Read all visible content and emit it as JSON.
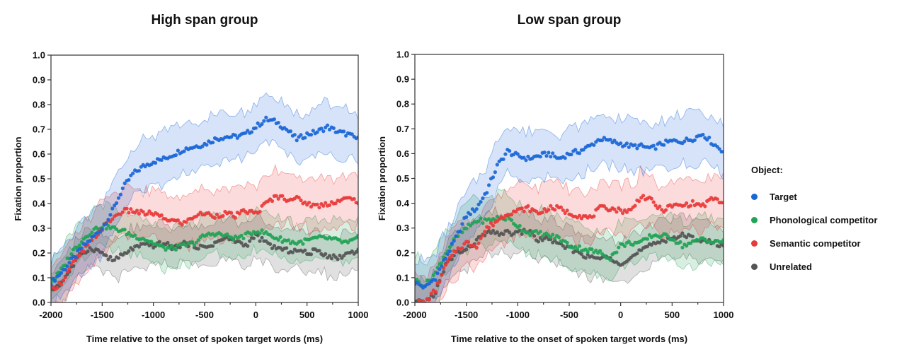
{
  "legend": {
    "title": "Object:",
    "items": [
      {
        "label": "Target",
        "color": "#1a66d6"
      },
      {
        "label": "Phonological competitor",
        "color": "#22a356"
      },
      {
        "label": "Semantic competitor",
        "color": "#e83a3a"
      },
      {
        "label": "Unrelated",
        "color": "#555555"
      }
    ]
  },
  "chart_data": [
    {
      "type": "scatter",
      "title": "High span group",
      "xlabel": "Time relative to the onset of spoken target words (ms)",
      "ylabel": "Fixation proportion",
      "xlim": [
        -2000,
        1000
      ],
      "ylim": [
        0.0,
        1.0
      ],
      "xticks": [
        "-2000",
        "-1500",
        "-1000",
        "-500",
        "0",
        "500",
        "1000"
      ],
      "yticks": [
        "0.0",
        "0.1",
        "0.2",
        "0.3",
        "0.4",
        "0.5",
        "0.6",
        "0.7",
        "0.8",
        "0.9",
        "1.0"
      ],
      "x": [
        -2000,
        -1900,
        -1800,
        -1700,
        -1600,
        -1500,
        -1400,
        -1300,
        -1200,
        -1100,
        -1000,
        -900,
        -800,
        -700,
        -600,
        -500,
        -400,
        -300,
        -200,
        -100,
        0,
        100,
        200,
        300,
        400,
        500,
        600,
        700,
        800,
        900,
        1000
      ],
      "series": [
        {
          "name": "Target",
          "color": "#1a66d6",
          "band": 0.1,
          "values": [
            0.08,
            0.12,
            0.17,
            0.22,
            0.26,
            0.3,
            0.37,
            0.46,
            0.52,
            0.55,
            0.57,
            0.58,
            0.6,
            0.62,
            0.63,
            0.64,
            0.66,
            0.67,
            0.67,
            0.68,
            0.71,
            0.74,
            0.73,
            0.7,
            0.66,
            0.68,
            0.69,
            0.71,
            0.69,
            0.68,
            0.66
          ]
        },
        {
          "name": "Phonological competitor",
          "color": "#22a356",
          "band": 0.08,
          "values": [
            0.08,
            0.13,
            0.2,
            0.25,
            0.29,
            0.31,
            0.3,
            0.29,
            0.27,
            0.26,
            0.24,
            0.22,
            0.22,
            0.23,
            0.24,
            0.27,
            0.28,
            0.27,
            0.26,
            0.27,
            0.29,
            0.28,
            0.26,
            0.25,
            0.24,
            0.25,
            0.26,
            0.26,
            0.25,
            0.24,
            0.26
          ]
        },
        {
          "name": "Semantic competitor",
          "color": "#e83a3a",
          "band": 0.1,
          "values": [
            0.05,
            0.08,
            0.15,
            0.2,
            0.25,
            0.3,
            0.34,
            0.37,
            0.37,
            0.36,
            0.36,
            0.34,
            0.33,
            0.32,
            0.35,
            0.36,
            0.35,
            0.36,
            0.35,
            0.37,
            0.36,
            0.4,
            0.43,
            0.42,
            0.42,
            0.4,
            0.39,
            0.4,
            0.41,
            0.42,
            0.41
          ]
        },
        {
          "name": "Unrelated",
          "color": "#555555",
          "band": 0.08,
          "values": [
            0.05,
            0.08,
            0.14,
            0.2,
            0.22,
            0.2,
            0.17,
            0.19,
            0.22,
            0.23,
            0.23,
            0.24,
            0.22,
            0.24,
            0.23,
            0.22,
            0.24,
            0.26,
            0.25,
            0.23,
            0.27,
            0.24,
            0.22,
            0.21,
            0.21,
            0.2,
            0.21,
            0.19,
            0.18,
            0.2,
            0.21
          ]
        }
      ]
    },
    {
      "type": "scatter",
      "title": "Low span group",
      "xlabel": "Time relative to the onset of spoken target words (ms)",
      "ylabel": "Fixation proportion",
      "xlim": [
        -2000,
        1000
      ],
      "ylim": [
        0.0,
        1.0
      ],
      "xticks": [
        "-2000",
        "-1500",
        "-1000",
        "-500",
        "0",
        "500",
        "1000"
      ],
      "yticks": [
        "0.0",
        "0.1",
        "0.2",
        "0.3",
        "0.4",
        "0.5",
        "0.6",
        "0.7",
        "0.8",
        "0.9",
        "1.0"
      ],
      "x": [
        -2000,
        -1900,
        -1800,
        -1700,
        -1600,
        -1500,
        -1400,
        -1300,
        -1200,
        -1100,
        -1000,
        -900,
        -800,
        -700,
        -600,
        -500,
        -400,
        -300,
        -200,
        -100,
        0,
        100,
        200,
        300,
        400,
        500,
        600,
        700,
        800,
        900,
        1000
      ],
      "series": [
        {
          "name": "Target",
          "color": "#1a66d6",
          "band": 0.1,
          "values": [
            0.08,
            0.06,
            0.1,
            0.18,
            0.26,
            0.35,
            0.38,
            0.45,
            0.55,
            0.61,
            0.59,
            0.58,
            0.59,
            0.6,
            0.58,
            0.6,
            0.61,
            0.63,
            0.66,
            0.65,
            0.64,
            0.63,
            0.63,
            0.62,
            0.64,
            0.65,
            0.65,
            0.66,
            0.68,
            0.64,
            0.61
          ]
        },
        {
          "name": "Phonological competitor",
          "color": "#22a356",
          "band": 0.09,
          "values": [
            0.09,
            0.07,
            0.12,
            0.2,
            0.26,
            0.3,
            0.33,
            0.33,
            0.34,
            0.34,
            0.31,
            0.28,
            0.28,
            0.27,
            0.26,
            0.23,
            0.22,
            0.21,
            0.2,
            0.18,
            0.23,
            0.24,
            0.24,
            0.27,
            0.27,
            0.26,
            0.23,
            0.24,
            0.26,
            0.24,
            0.25
          ]
        },
        {
          "name": "Semantic competitor",
          "color": "#e83a3a",
          "band": 0.1,
          "values": [
            0.0,
            0.0,
            0.05,
            0.15,
            0.21,
            0.24,
            0.23,
            0.3,
            0.33,
            0.36,
            0.37,
            0.38,
            0.36,
            0.38,
            0.38,
            0.36,
            0.35,
            0.34,
            0.38,
            0.38,
            0.37,
            0.37,
            0.43,
            0.41,
            0.37,
            0.39,
            0.39,
            0.4,
            0.39,
            0.42,
            0.4
          ]
        },
        {
          "name": "Unrelated",
          "color": "#555555",
          "band": 0.08,
          "values": [
            0.0,
            0.0,
            0.04,
            0.15,
            0.2,
            0.21,
            0.25,
            0.28,
            0.28,
            0.28,
            0.28,
            0.29,
            0.25,
            0.26,
            0.23,
            0.22,
            0.2,
            0.18,
            0.18,
            0.18,
            0.16,
            0.18,
            0.21,
            0.23,
            0.25,
            0.26,
            0.27,
            0.26,
            0.25,
            0.24,
            0.23
          ]
        }
      ]
    }
  ]
}
